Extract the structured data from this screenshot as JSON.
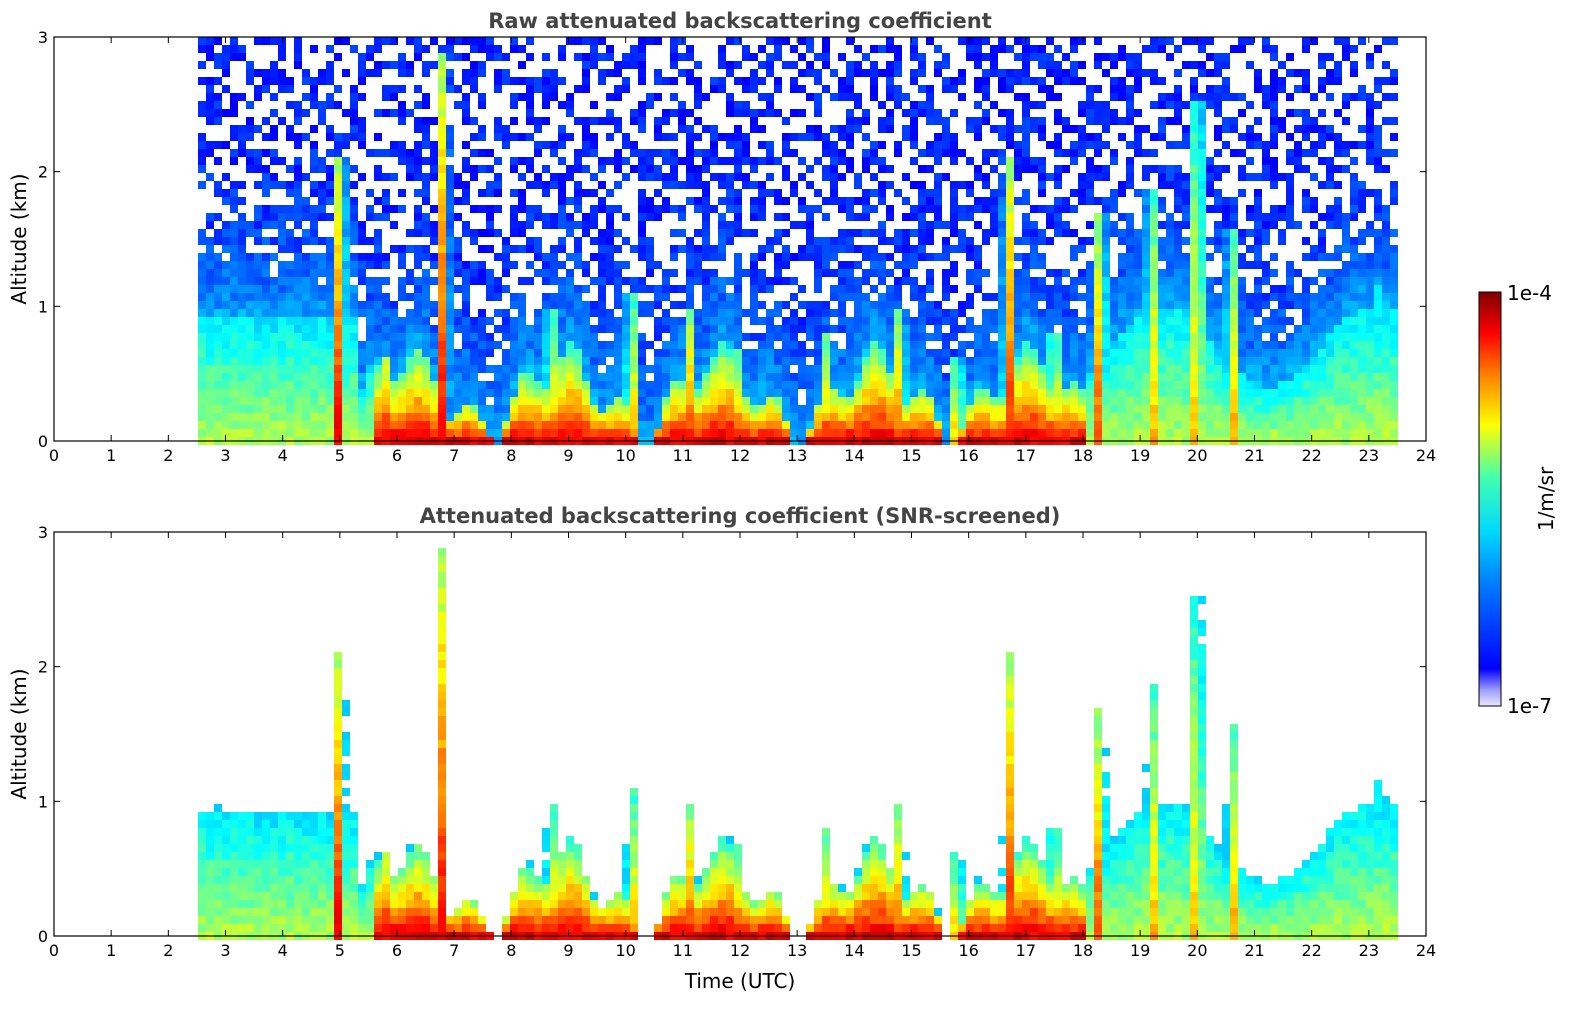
{
  "chart_data": [
    {
      "type": "heatmap",
      "title": "Raw attenuated backscattering coefficient",
      "xlabel": "",
      "ylabel": "Altitude (km)",
      "xlim": [
        0,
        24
      ],
      "ylim": [
        0,
        3
      ],
      "xticks": [
        "0",
        "1",
        "2",
        "3",
        "4",
        "5",
        "6",
        "7",
        "8",
        "9",
        "10",
        "11",
        "12",
        "13",
        "14",
        "15",
        "16",
        "17",
        "18",
        "19",
        "20",
        "21",
        "22",
        "23",
        "24"
      ],
      "yticks": [
        "0",
        "1",
        "2",
        "3"
      ],
      "data_time_range": [
        2.57,
        23.55
      ]
    },
    {
      "type": "heatmap",
      "title": "Attenuated backscattering coefficient (SNR-screened)",
      "xlabel": "Time (UTC)",
      "ylabel": "Altitude (km)",
      "xlim": [
        0,
        24
      ],
      "ylim": [
        0,
        3
      ],
      "xticks": [
        "0",
        "1",
        "2",
        "3",
        "4",
        "5",
        "6",
        "7",
        "8",
        "9",
        "10",
        "11",
        "12",
        "13",
        "14",
        "15",
        "16",
        "17",
        "18",
        "19",
        "20",
        "21",
        "22",
        "23",
        "24"
      ],
      "yticks": [
        "0",
        "1",
        "2",
        "3"
      ],
      "data_time_range": [
        2.57,
        23.55
      ]
    }
  ],
  "colorbar": {
    "label": "1/m/sr",
    "max_label": "1e-4",
    "min_label": "1e-7",
    "scale": "log"
  },
  "colors": {
    "low": "#0000ff",
    "mid": "#00ccff",
    "high": "#ffff00",
    "max": "#8b0000"
  }
}
